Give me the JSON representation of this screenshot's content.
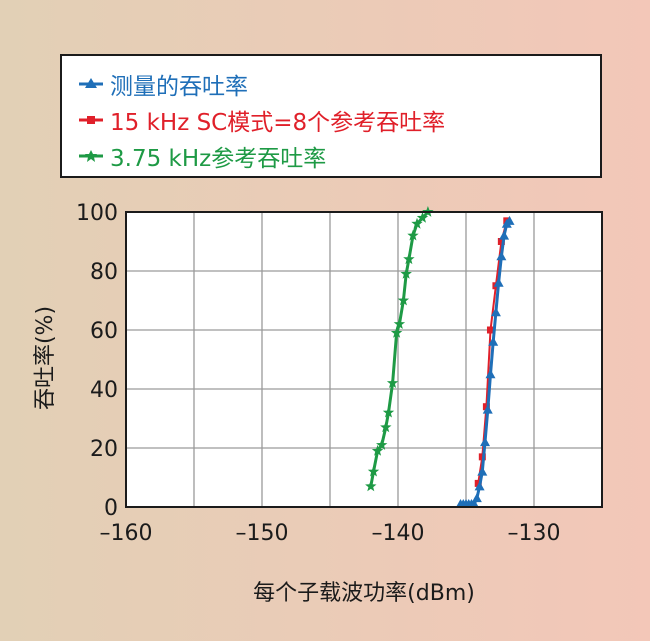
{
  "chart_data": {
    "type": "line",
    "title": "",
    "xlabel": "每个子载波功率(dBm)",
    "ylabel": "吞吐率(%)",
    "xlim": [
      -160,
      -125
    ],
    "ylim": [
      0,
      100
    ],
    "xticks": [
      -160,
      -150,
      -140,
      -130
    ],
    "xtick_labels": [
      "–160",
      "–150",
      "–140",
      "–130"
    ],
    "yticks": [
      0,
      20,
      40,
      60,
      80,
      100
    ],
    "ytick_labels": [
      "0",
      "20",
      "40",
      "60",
      "80",
      "100"
    ],
    "grid": true,
    "legend_position": "above plot",
    "series": [
      {
        "name": "测量的吞吐率",
        "color": "#1f6fb8",
        "marker": "triangle",
        "points": [
          [
            -135.4,
            1
          ],
          [
            -135.2,
            1
          ],
          [
            -135.0,
            1
          ],
          [
            -134.8,
            1
          ],
          [
            -134.6,
            1
          ],
          [
            -134.4,
            1
          ],
          [
            -134.2,
            3
          ],
          [
            -134.0,
            7
          ],
          [
            -133.8,
            12
          ],
          [
            -133.6,
            22
          ],
          [
            -133.4,
            33
          ],
          [
            -133.2,
            45
          ],
          [
            -133.0,
            56
          ],
          [
            -132.8,
            66
          ],
          [
            -132.6,
            76
          ],
          [
            -132.4,
            85
          ],
          [
            -132.2,
            92
          ],
          [
            -132.0,
            96
          ],
          [
            -131.8,
            97
          ]
        ]
      },
      {
        "name": "15 kHz SC模式=8个参考吞吐率",
        "color": "#e0202a",
        "marker": "square",
        "points": [
          [
            -134.1,
            8
          ],
          [
            -133.8,
            17
          ],
          [
            -133.5,
            34
          ],
          [
            -133.2,
            60
          ],
          [
            -132.8,
            75
          ],
          [
            -132.4,
            90
          ],
          [
            -132.0,
            97
          ]
        ]
      },
      {
        "name": "3.75 kHz参考吞吐率",
        "color": "#1e9a45",
        "marker": "star",
        "points": [
          [
            -142.0,
            7
          ],
          [
            -141.8,
            12
          ],
          [
            -141.5,
            19
          ],
          [
            -141.2,
            21
          ],
          [
            -140.9,
            27
          ],
          [
            -140.7,
            32
          ],
          [
            -140.4,
            42
          ],
          [
            -140.1,
            59
          ],
          [
            -139.9,
            62
          ],
          [
            -139.6,
            70
          ],
          [
            -139.4,
            79
          ],
          [
            -139.2,
            84
          ],
          [
            -138.9,
            92
          ],
          [
            -138.6,
            96
          ],
          [
            -138.2,
            98
          ],
          [
            -137.8,
            100
          ]
        ]
      }
    ]
  }
}
